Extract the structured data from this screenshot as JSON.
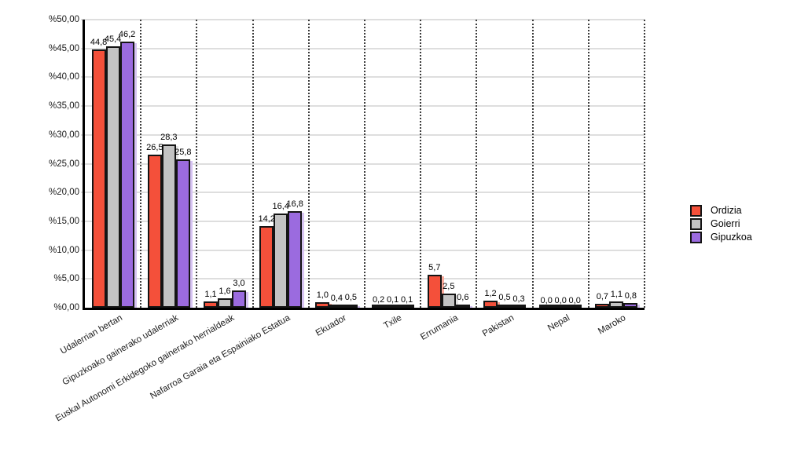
{
  "chart_data": {
    "type": "bar",
    "title": "",
    "xlabel": "",
    "ylabel": "",
    "ylim": [
      0,
      50
    ],
    "grid": true,
    "legend_position": "right",
    "decimal_separator": ",",
    "categories": [
      "Udalerrian bertan",
      "Gipuzkoako gainerako udalerriak",
      "Euskal Autonomi Erkidegoko gainerako herrialdeak",
      "Nafarroa Garaia eta Espainiako Estatua",
      "Ekuador",
      "Txile",
      "Errumania",
      "Pakistan",
      "Nepal",
      "Maroko"
    ],
    "series": [
      {
        "name": "Ordizia",
        "color": "#f4503a",
        "shadow_color": "#fbab9c",
        "values": [
          44.8,
          26.5,
          1.1,
          14.2,
          1.0,
          0.2,
          5.7,
          1.2,
          0.0,
          0.7
        ]
      },
      {
        "name": "Goierri",
        "color": "#c3c3c3",
        "shadow_color": "#e4e4e4",
        "values": [
          45.4,
          28.3,
          1.6,
          16.4,
          0.4,
          0.1,
          2.5,
          0.5,
          0.0,
          1.1
        ]
      },
      {
        "name": "Gipuzkoa",
        "color": "#9b6bdf",
        "shadow_color": "#d6c3f2",
        "values": [
          46.2,
          25.8,
          3.0,
          16.8,
          0.5,
          0.1,
          0.6,
          0.3,
          0.0,
          0.8
        ]
      }
    ],
    "y_ticks": [
      {
        "value": 0,
        "label": "%0,00"
      },
      {
        "value": 5,
        "label": "%5,00"
      },
      {
        "value": 10,
        "label": "%10,00"
      },
      {
        "value": 15,
        "label": "%15,00"
      },
      {
        "value": 20,
        "label": "%20,00"
      },
      {
        "value": 25,
        "label": "%25,00"
      },
      {
        "value": 30,
        "label": "%30,00"
      },
      {
        "value": 35,
        "label": "%35,00"
      },
      {
        "value": 40,
        "label": "%40,00"
      },
      {
        "value": 45,
        "label": "%45,00"
      },
      {
        "value": 50,
        "label": "%50,00"
      }
    ],
    "value_labels_shown": true
  }
}
